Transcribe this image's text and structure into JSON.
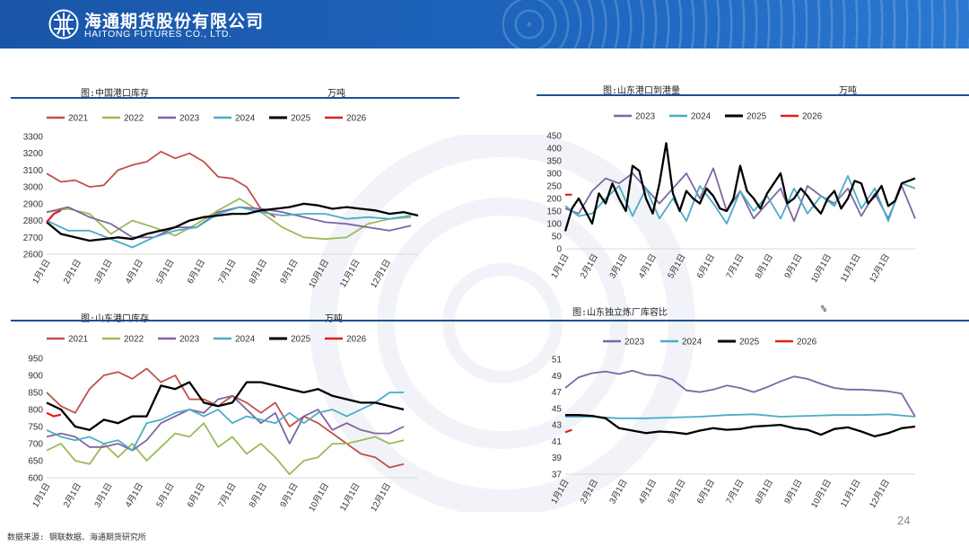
{
  "header": {
    "company_cn": "海通期货股份有限公司",
    "company_en": "HAITONG FUTURES CO., LTD."
  },
  "panels": [
    {
      "title": "图:中国港口库存",
      "unit": "万吨"
    },
    {
      "title": "图:山东港口到港量",
      "unit": "万吨"
    },
    {
      "title": "图:山东港口库存",
      "unit": "万吨"
    },
    {
      "title": "图:山东独立炼厂库容比",
      "unit": "%"
    }
  ],
  "footer": {
    "source": "数据来源: 钢联数据、海通期货研究所",
    "page": "24"
  },
  "colors": {
    "2021": "#c0504d",
    "2022": "#9bbb59",
    "2023": "#8064a2",
    "2024": "#4bacc6",
    "2025": "#000000",
    "2026": "#e02020"
  },
  "chart_data": [
    {
      "type": "line",
      "ylim": [
        2600,
        3300
      ],
      "yticks": [
        2600,
        2700,
        2800,
        2900,
        3000,
        3100,
        3200,
        3300
      ],
      "categories": [
        "1月1日",
        "2月1日",
        "3月1日",
        "4月1日",
        "5月1日",
        "6月1日",
        "7月1日",
        "8月1日",
        "9月1日",
        "10月1日",
        "11月1日",
        "12月1日"
      ],
      "x_max": 52,
      "series": [
        {
          "name": "2021",
          "x": [
            0,
            2,
            4,
            6,
            8,
            10,
            12,
            14,
            16,
            18,
            20,
            22,
            24,
            26,
            28,
            30,
            32
          ],
          "values": [
            3080,
            3030,
            3040,
            3000,
            3010,
            3100,
            3130,
            3150,
            3210,
            3170,
            3200,
            3150,
            3060,
            3050,
            3000,
            2870,
            2820
          ]
        },
        {
          "name": "2022",
          "x": [
            0,
            3,
            6,
            9,
            12,
            15,
            18,
            21,
            24,
            27,
            30,
            33,
            36,
            39,
            42,
            45,
            48,
            51
          ],
          "values": [
            2850,
            2870,
            2840,
            2720,
            2800,
            2760,
            2710,
            2780,
            2860,
            2930,
            2850,
            2760,
            2700,
            2690,
            2700,
            2780,
            2810,
            2820
          ]
        },
        {
          "name": "2023",
          "x": [
            0,
            3,
            6,
            9,
            12,
            15,
            18,
            21,
            24,
            27,
            30,
            33,
            36,
            39,
            42,
            45,
            48,
            51
          ],
          "values": [
            2850,
            2880,
            2820,
            2780,
            2700,
            2700,
            2760,
            2760,
            2850,
            2880,
            2870,
            2850,
            2820,
            2790,
            2780,
            2760,
            2740,
            2770
          ]
        },
        {
          "name": "2024",
          "x": [
            0,
            3,
            6,
            9,
            12,
            15,
            18,
            21,
            24,
            27,
            30,
            33,
            36,
            39,
            42,
            45,
            48,
            51
          ],
          "values": [
            2800,
            2740,
            2740,
            2690,
            2640,
            2700,
            2740,
            2760,
            2840,
            2880,
            2850,
            2830,
            2840,
            2840,
            2810,
            2820,
            2810,
            2830
          ]
        },
        {
          "name": "2025",
          "x": [
            0,
            2,
            4,
            6,
            8,
            10,
            12,
            14,
            16,
            18,
            20,
            22,
            24,
            26,
            28,
            30,
            32,
            34,
            36,
            38,
            40,
            42,
            44,
            46,
            48,
            50,
            52
          ],
          "values": [
            2790,
            2720,
            2700,
            2680,
            2690,
            2700,
            2690,
            2720,
            2740,
            2760,
            2800,
            2820,
            2830,
            2840,
            2840,
            2860,
            2870,
            2880,
            2900,
            2890,
            2870,
            2880,
            2870,
            2860,
            2840,
            2850,
            2830
          ]
        },
        {
          "name": "2026",
          "x": [
            0,
            1,
            2
          ],
          "values": [
            2790,
            2840,
            2860
          ]
        }
      ]
    },
    {
      "type": "line",
      "ylim": [
        0,
        450
      ],
      "yticks": [
        0,
        50,
        100,
        150,
        200,
        250,
        300,
        350,
        400,
        450
      ],
      "categories": [
        "1月1日",
        "2月1日",
        "3月1日",
        "4月1日",
        "5月1日",
        "6月1日",
        "7月1日",
        "8月1日",
        "9月1日",
        "10月1日",
        "11月1日",
        "12月1日"
      ],
      "x_max": 52,
      "series": [
        {
          "name": "2023",
          "x": [
            0,
            2,
            4,
            6,
            8,
            10,
            12,
            14,
            16,
            18,
            20,
            22,
            24,
            26,
            28,
            30,
            32,
            34,
            36,
            38,
            40,
            42,
            44,
            46,
            48,
            50,
            52
          ],
          "values": [
            160,
            140,
            230,
            280,
            260,
            300,
            240,
            180,
            240,
            300,
            200,
            320,
            150,
            230,
            120,
            180,
            240,
            110,
            250,
            210,
            180,
            240,
            130,
            220,
            120,
            250,
            120
          ]
        },
        {
          "name": "2024",
          "x": [
            0,
            2,
            4,
            6,
            8,
            10,
            12,
            14,
            16,
            18,
            20,
            22,
            24,
            26,
            28,
            30,
            32,
            34,
            36,
            38,
            40,
            42,
            44,
            46,
            48,
            50,
            52
          ],
          "values": [
            170,
            130,
            140,
            200,
            250,
            130,
            240,
            120,
            200,
            110,
            250,
            180,
            100,
            230,
            150,
            210,
            120,
            240,
            140,
            210,
            170,
            290,
            160,
            240,
            110,
            260,
            240
          ]
        },
        {
          "name": "2025",
          "x": [
            0,
            1,
            2,
            3,
            4,
            5,
            6,
            7,
            8,
            9,
            10,
            11,
            12,
            13,
            14,
            15,
            16,
            17,
            18,
            19,
            20,
            21,
            22,
            23,
            24,
            25,
            26,
            27,
            28,
            29,
            30,
            31,
            32,
            33,
            34,
            35,
            36,
            37,
            38,
            39,
            40,
            41,
            42,
            43,
            44,
            45,
            46,
            47,
            48,
            49,
            50,
            51,
            52
          ],
          "values": [
            70,
            160,
            200,
            150,
            100,
            220,
            180,
            260,
            200,
            150,
            330,
            310,
            200,
            140,
            260,
            420,
            220,
            150,
            230,
            200,
            180,
            240,
            210,
            160,
            150,
            200,
            330,
            230,
            200,
            160,
            220,
            260,
            300,
            180,
            200,
            240,
            210,
            170,
            140,
            200,
            230,
            160,
            200,
            270,
            260,
            180,
            210,
            250,
            170,
            190,
            260,
            270,
            280
          ]
        },
        {
          "name": "2026",
          "x": [
            0,
            1
          ],
          "values": [
            215,
            215
          ]
        }
      ]
    },
    {
      "type": "line",
      "ylim": [
        600,
        950
      ],
      "yticks": [
        600,
        650,
        700,
        750,
        800,
        850,
        900,
        950
      ],
      "categories": [
        "1月1日",
        "2月1日",
        "3月1日",
        "4月1日",
        "5月1日",
        "6月1日",
        "7月1日",
        "8月1日",
        "9月1日",
        "10月1日",
        "11月1日",
        "12月1日"
      ],
      "x_max": 52,
      "series": [
        {
          "name": "2021",
          "x": [
            0,
            2,
            4,
            6,
            8,
            10,
            12,
            14,
            16,
            18,
            20,
            22,
            24,
            26,
            28,
            30,
            32,
            34,
            36,
            38,
            40,
            42,
            44,
            46,
            48,
            50
          ],
          "values": [
            850,
            810,
            790,
            860,
            900,
            910,
            890,
            920,
            880,
            900,
            830,
            830,
            810,
            840,
            820,
            790,
            820,
            750,
            780,
            760,
            730,
            700,
            670,
            660,
            630,
            640
          ]
        },
        {
          "name": "2022",
          "x": [
            0,
            2,
            4,
            6,
            8,
            10,
            12,
            14,
            16,
            18,
            20,
            22,
            24,
            26,
            28,
            30,
            32,
            34,
            36,
            38,
            40,
            42,
            44,
            46,
            48,
            50
          ],
          "values": [
            680,
            700,
            650,
            640,
            700,
            660,
            700,
            650,
            690,
            730,
            720,
            760,
            690,
            720,
            670,
            700,
            660,
            610,
            650,
            660,
            700,
            700,
            710,
            720,
            700,
            710
          ]
        },
        {
          "name": "2023",
          "x": [
            0,
            2,
            4,
            6,
            8,
            10,
            12,
            14,
            16,
            18,
            20,
            22,
            24,
            26,
            28,
            30,
            32,
            34,
            36,
            38,
            40,
            42,
            44,
            46,
            48,
            50
          ],
          "values": [
            720,
            730,
            720,
            690,
            690,
            700,
            680,
            710,
            760,
            780,
            800,
            790,
            830,
            840,
            800,
            760,
            790,
            700,
            780,
            800,
            740,
            760,
            740,
            730,
            730,
            750
          ]
        },
        {
          "name": "2024",
          "x": [
            0,
            2,
            4,
            6,
            8,
            10,
            12,
            14,
            16,
            18,
            20,
            22,
            24,
            26,
            28,
            30,
            32,
            34,
            36,
            38,
            40,
            42,
            44,
            46,
            48,
            50
          ],
          "values": [
            740,
            720,
            710,
            720,
            700,
            710,
            680,
            760,
            770,
            790,
            800,
            780,
            800,
            760,
            780,
            770,
            760,
            790,
            760,
            790,
            800,
            780,
            800,
            820,
            850,
            850
          ]
        },
        {
          "name": "2025",
          "x": [
            0,
            2,
            4,
            6,
            8,
            10,
            12,
            14,
            16,
            18,
            20,
            22,
            24,
            26,
            28,
            30,
            32,
            34,
            36,
            38,
            40,
            42,
            44,
            46,
            48,
            50
          ],
          "values": [
            820,
            800,
            750,
            740,
            770,
            760,
            780,
            780,
            870,
            860,
            880,
            820,
            810,
            820,
            880,
            880,
            870,
            860,
            850,
            860,
            840,
            830,
            820,
            820,
            810,
            800
          ]
        },
        {
          "name": "2026",
          "x": [
            0,
            1,
            2
          ],
          "values": [
            790,
            780,
            785
          ]
        }
      ]
    },
    {
      "type": "line",
      "ylim": [
        37,
        51
      ],
      "yticks": [
        37,
        39,
        41,
        43,
        45,
        47,
        49,
        51
      ],
      "categories": [
        "1月1日",
        "2月1日",
        "3月1日",
        "4月1日",
        "5月1日",
        "6月1日",
        "7月1日",
        "8月1日",
        "9月1日",
        "10月1日",
        "11月1日",
        "12月1日"
      ],
      "x_max": 52,
      "series": [
        {
          "name": "2023",
          "x": [
            0,
            2,
            4,
            6,
            8,
            10,
            12,
            14,
            16,
            18,
            20,
            22,
            24,
            26,
            28,
            30,
            32,
            34,
            36,
            38,
            40,
            42,
            44,
            46,
            48,
            50,
            52
          ],
          "values": [
            47.5,
            48.8,
            49.3,
            49.5,
            49.2,
            49.6,
            49.1,
            49.0,
            48.5,
            47.2,
            47.0,
            47.3,
            47.8,
            47.5,
            47.0,
            47.6,
            48.3,
            48.9,
            48.6,
            48.0,
            47.5,
            47.3,
            47.3,
            47.2,
            47.1,
            46.8,
            44.0
          ]
        },
        {
          "name": "2024",
          "x": [
            0,
            4,
            8,
            12,
            16,
            20,
            24,
            28,
            32,
            36,
            40,
            44,
            48,
            52
          ],
          "values": [
            44.0,
            44.0,
            43.8,
            43.8,
            43.9,
            44.0,
            44.2,
            44.3,
            44.0,
            44.1,
            44.2,
            44.2,
            44.3,
            44.0
          ]
        },
        {
          "name": "2025",
          "x": [
            0,
            2,
            4,
            6,
            8,
            10,
            12,
            14,
            16,
            18,
            20,
            22,
            24,
            26,
            28,
            30,
            32,
            34,
            36,
            38,
            40,
            42,
            44,
            46,
            48,
            50,
            52
          ],
          "values": [
            44.2,
            44.2,
            44.1,
            43.8,
            42.6,
            42.3,
            42.0,
            42.2,
            42.1,
            41.9,
            42.3,
            42.6,
            42.4,
            42.5,
            42.8,
            42.9,
            43.0,
            42.6,
            42.4,
            41.8,
            42.5,
            42.7,
            42.2,
            41.6,
            42.0,
            42.6,
            42.8
          ]
        },
        {
          "name": "2026",
          "x": [
            0,
            1
          ],
          "values": [
            42.1,
            42.4
          ]
        }
      ]
    }
  ]
}
